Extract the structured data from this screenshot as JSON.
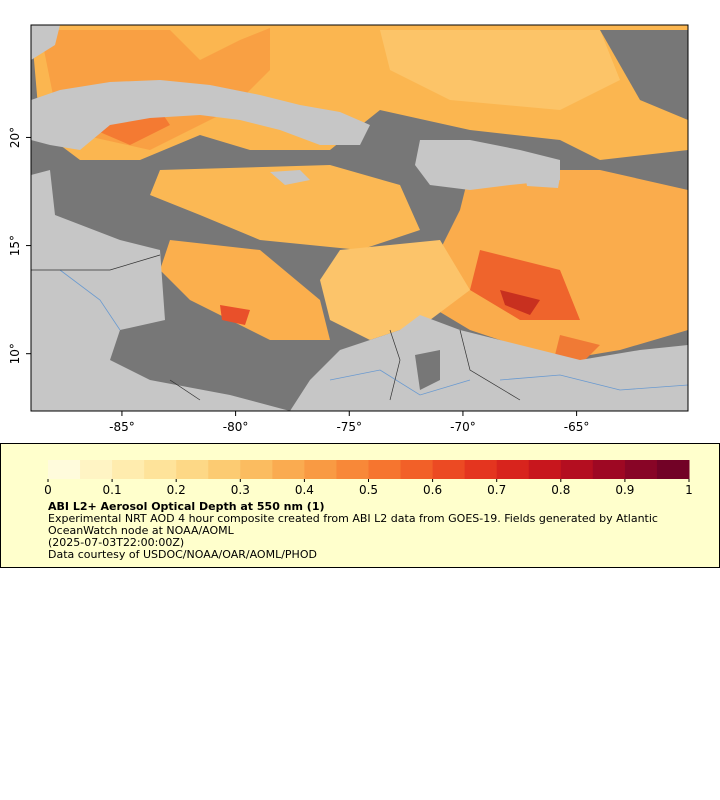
{
  "map": {
    "lonlim": [
      -89,
      -60.1
    ],
    "latlim": [
      7.35,
      25.2
    ],
    "lonticks": [
      {
        "value": -85,
        "label": "-85°"
      },
      {
        "value": -80,
        "label": "-80°"
      },
      {
        "value": -75,
        "label": "-75°"
      },
      {
        "value": -70,
        "label": "-70°"
      },
      {
        "value": -65,
        "label": "-65°"
      }
    ],
    "latticks": [
      {
        "value": 10,
        "label": "10°"
      },
      {
        "value": 15,
        "label": "15°"
      },
      {
        "value": 20,
        "label": "20°"
      }
    ]
  },
  "colorbar": {
    "range": [
      0,
      1
    ],
    "ticks": [
      0,
      0.1,
      0.2,
      0.3,
      0.4,
      0.5,
      0.6,
      0.7,
      0.8,
      0.9,
      1
    ],
    "colors": [
      "#fffbdc",
      "#fff4c4",
      "#ffecae",
      "#fee39a",
      "#fdd886",
      "#fccb72",
      "#fbbc60",
      "#faab50",
      "#f99a43",
      "#f88838",
      "#f6752f",
      "#f26028",
      "#ec4a23",
      "#e4351f",
      "#d8241d",
      "#c8161d",
      "#b40e20",
      "#9e0823",
      "#880526",
      "#720226"
    ]
  },
  "legend": {
    "title": "ABI L2+ Aerosol Optical Depth at 550 nm (1)",
    "description": "Experimental NRT AOD 4 hour composite created from ABI L2 data from GOES-19. Fields generated by Atlantic OceanWatch node at NOAA/AOML",
    "time": "(2025-07-03T22:00:00Z)",
    "credit": "Data courtesy of USDOC/NOAA/OAR/AOML/PHOD"
  }
}
